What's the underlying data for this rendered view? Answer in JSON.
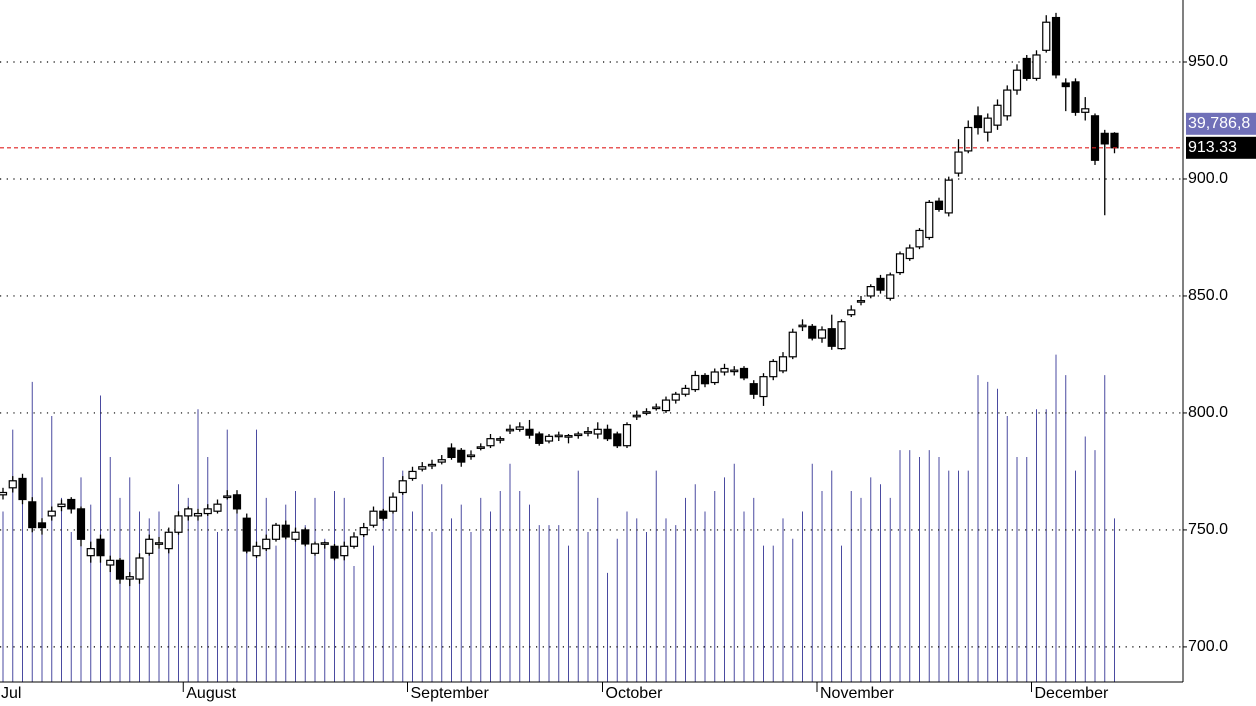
{
  "chart_data": {
    "type": "candlestick",
    "categories": [
      "Jul",
      null,
      null,
      null,
      null,
      null,
      null,
      null,
      null,
      null,
      null,
      null,
      null,
      null,
      null,
      null,
      null,
      null,
      null,
      "August",
      null,
      null,
      null,
      null,
      null,
      null,
      null,
      null,
      null,
      null,
      null,
      null,
      null,
      null,
      null,
      null,
      null,
      null,
      null,
      null,
      null,
      null,
      "September",
      null,
      null,
      null,
      null,
      null,
      null,
      null,
      null,
      null,
      null,
      null,
      null,
      null,
      null,
      null,
      null,
      null,
      null,
      null,
      "October",
      null,
      null,
      null,
      null,
      null,
      null,
      null,
      null,
      null,
      null,
      null,
      null,
      null,
      null,
      null,
      null,
      null,
      null,
      null,
      null,
      null,
      "November",
      null,
      null,
      null,
      null,
      null,
      null,
      null,
      null,
      null,
      null,
      null,
      null,
      null,
      null,
      null,
      null,
      null,
      null,
      null,
      null,
      null,
      "December",
      null,
      null,
      null,
      null,
      null,
      null,
      null,
      null
    ],
    "open": [
      765,
      768,
      772,
      762,
      753,
      756,
      760,
      763,
      759,
      739,
      746,
      735,
      737,
      729,
      729,
      740,
      744,
      742,
      749,
      756,
      756,
      757,
      758,
      764,
      765,
      755,
      739,
      742,
      746,
      752,
      746,
      750,
      740,
      744,
      743,
      739,
      743,
      748,
      752,
      758,
      758,
      766,
      772,
      776,
      777.5,
      779,
      785,
      784,
      781.5,
      785,
      786,
      788.5,
      792.5,
      793,
      793,
      791,
      788,
      790,
      790,
      790.8,
      791.5,
      791,
      793,
      791,
      786,
      798.5,
      800,
      802,
      801,
      805.5,
      808,
      810,
      816,
      813,
      817.5,
      818,
      819,
      812.5,
      807,
      815.5,
      818,
      824,
      837,
      837,
      832,
      836,
      827.5,
      842,
      847.5,
      850,
      857.5,
      849,
      860,
      866,
      871,
      875,
      890.5,
      885.5,
      902.5,
      912,
      927,
      920,
      923,
      927,
      938,
      951.5,
      943,
      955,
      969,
      941,
      941.5,
      928.5,
      927,
      919.5,
      919.5
    ],
    "high": [
      768,
      773,
      774,
      764,
      755,
      760,
      763,
      764,
      760,
      745,
      748,
      739,
      738,
      732,
      740,
      748,
      747,
      751,
      758,
      760,
      759,
      761,
      763,
      767,
      767,
      757,
      745,
      748,
      753,
      754,
      751,
      751,
      745,
      745,
      744,
      745,
      749,
      753,
      760,
      759,
      766,
      773,
      777,
      779,
      780,
      782,
      787,
      785,
      784,
      787,
      791,
      790,
      795,
      796,
      797,
      792,
      791,
      792,
      791,
      792,
      794,
      796,
      795,
      792,
      796,
      801,
      802,
      804,
      807,
      809,
      812,
      818,
      817,
      819,
      821,
      820,
      820,
      814,
      817,
      823,
      826,
      836,
      840,
      838,
      837,
      842,
      840,
      846,
      850,
      855,
      859,
      860,
      869,
      872,
      879,
      891,
      892,
      901,
      917,
      925,
      931,
      928,
      934,
      940,
      949,
      953,
      955,
      970,
      971,
      943,
      943,
      935,
      928,
      921,
      920
    ],
    "low": [
      763,
      766,
      761,
      749,
      748,
      754,
      758,
      757,
      743,
      736,
      736,
      732,
      727,
      726,
      727,
      739,
      742,
      740,
      748,
      754,
      754,
      756,
      757,
      763,
      757,
      740,
      738,
      741,
      745,
      746,
      745,
      743,
      739,
      742,
      737,
      737,
      742,
      747,
      751,
      754,
      757,
      765,
      771,
      775,
      776,
      778,
      780,
      777,
      780,
      784,
      785,
      787,
      791,
      792,
      789,
      786,
      787,
      788,
      787,
      789,
      790,
      789,
      788,
      785,
      785,
      797,
      799,
      801,
      800,
      804,
      807,
      809,
      811,
      812,
      816,
      816,
      814,
      806,
      803,
      814,
      817,
      823,
      835,
      831,
      830,
      827,
      827,
      841,
      846,
      849,
      851,
      848,
      859,
      865,
      870,
      874,
      886,
      884,
      901,
      911,
      919,
      916,
      921,
      925,
      936,
      942,
      942,
      954,
      943,
      929,
      927,
      925,
      906,
      884.5,
      911
    ],
    "close": [
      766,
      771,
      763,
      751,
      751,
      758,
      761,
      759,
      746,
      742,
      739,
      737,
      729,
      730,
      738,
      746,
      744.5,
      749,
      756,
      759,
      757,
      759,
      761,
      764.5,
      759,
      741,
      743,
      746,
      752,
      747,
      749,
      744,
      744,
      744.5,
      738,
      743,
      747,
      751,
      758,
      755,
      764,
      771,
      775,
      777,
      778,
      780,
      781,
      779,
      782,
      785.5,
      789,
      789,
      793,
      794,
      790.5,
      787,
      790,
      790.5,
      790.3,
      791,
      792,
      793,
      789,
      786,
      795,
      799,
      800.5,
      802.5,
      805.5,
      808,
      810.5,
      816,
      812.5,
      817.5,
      819,
      818.3,
      815,
      808,
      815.5,
      822,
      824,
      834.5,
      837.5,
      832,
      835.5,
      828.5,
      839,
      844,
      848,
      854,
      852.5,
      859,
      868,
      870.5,
      878,
      890,
      887,
      899.5,
      911.5,
      922,
      922,
      926,
      931.5,
      938,
      946.5,
      943,
      953,
      967,
      944.5,
      939.5,
      928.5,
      930,
      908,
      915,
      913.33
    ],
    "volume": [
      25,
      37,
      28,
      44,
      30,
      39,
      27,
      22,
      30,
      26,
      42,
      33,
      27,
      30,
      25,
      24,
      25,
      22,
      29,
      27,
      40,
      33,
      22,
      37,
      28,
      24,
      37,
      27,
      20,
      26,
      28,
      23,
      27,
      21,
      28,
      27,
      17,
      22,
      20,
      33,
      27,
      31,
      25,
      29,
      22,
      29,
      24,
      26,
      22,
      27,
      25,
      28,
      32,
      28,
      26,
      23,
      23,
      23,
      20,
      31,
      22,
      27,
      16,
      21,
      25,
      24,
      22,
      31,
      24,
      23,
      27,
      29,
      25,
      28,
      30,
      32,
      25,
      27,
      20,
      20,
      24,
      21,
      25,
      32,
      28,
      31,
      20,
      28,
      27,
      30,
      29,
      27,
      34,
      34,
      33,
      34,
      33,
      31,
      31,
      31,
      45,
      44,
      43,
      39,
      33,
      33,
      40,
      40,
      48,
      45,
      31,
      36,
      34,
      45,
      24
    ],
    "volume_ylim": [
      0,
      100
    ],
    "volume_color": "#4a4aa0",
    "ylim": [
      685,
      976.5
    ],
    "yticks": [
      {
        "value": 700,
        "label": "700.0"
      },
      {
        "value": 750,
        "label": "750.0"
      },
      {
        "value": 800,
        "label": "800.0"
      },
      {
        "value": 850,
        "label": "850.0"
      },
      {
        "value": 900,
        "label": "900.0"
      },
      {
        "value": 950,
        "label": "950.0"
      }
    ],
    "grid": true,
    "last_price": 913.33,
    "last_price_color": "#e02020",
    "volume_label": "39,786,8"
  }
}
